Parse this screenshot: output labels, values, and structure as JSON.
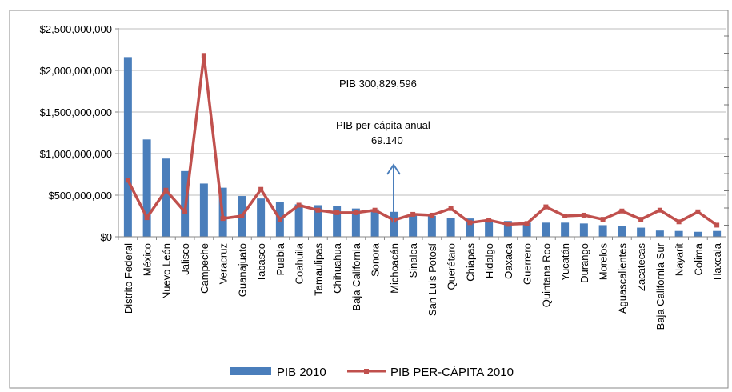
{
  "chart_data": {
    "type": "bar",
    "title": "",
    "categories": [
      "Distrito Federal",
      "México",
      "Nuevo León",
      "Jalisco",
      "Campeche",
      "Veracruz",
      "Guanajuato",
      "Tabasco",
      "Puebla",
      "Coahuila",
      "Tamaulipas",
      "Chihuahua",
      "Baja California",
      "Sonora",
      "Michoacán",
      "Sinaloa",
      "San Luis Potosí",
      "Querétaro",
      "Chiapas",
      "Hidalgo",
      "Oaxaca",
      "Guerrero",
      "Quintana Roo",
      "Yucatán",
      "Durango",
      "Morelos",
      "Aguascalientes",
      "Zacatecas",
      "Baja California Sur",
      "Nayarit",
      "Colima",
      "Tlaxcala"
    ],
    "y_ticks": [
      "$0",
      "$500,000,000",
      "$1,000,000,000",
      "$1,500,000,000",
      "$2,000,000,000",
      "$2,500,000,000"
    ],
    "ylim": [
      0,
      2500000000
    ],
    "grid": true,
    "legend_position": "bottom",
    "series": [
      {
        "name": "PIB 2010",
        "type": "bar",
        "color": "#4a7ebb",
        "values": [
          2160000000,
          1170000000,
          940000000,
          790000000,
          640000000,
          590000000,
          490000000,
          460000000,
          420000000,
          390000000,
          380000000,
          370000000,
          340000000,
          330000000,
          300000000,
          270000000,
          250000000,
          230000000,
          220000000,
          200000000,
          190000000,
          170000000,
          170000000,
          170000000,
          160000000,
          140000000,
          130000000,
          110000000,
          75000000,
          70000000,
          60000000,
          70000000
        ]
      },
      {
        "name": "PIB PER-CÁPITA 2010",
        "type": "line",
        "color": "#c0504d",
        "values": [
          680000000,
          230000000,
          560000000,
          300000000,
          2180000000,
          220000000,
          250000000,
          570000000,
          210000000,
          380000000,
          320000000,
          290000000,
          290000000,
          320000000,
          200000000,
          270000000,
          260000000,
          340000000,
          170000000,
          200000000,
          150000000,
          160000000,
          360000000,
          250000000,
          260000000,
          210000000,
          310000000,
          210000000,
          320000000,
          180000000,
          300000000,
          140000000
        ]
      }
    ],
    "annotations": {
      "pib": "PIB 300,829,596",
      "percapita_line1": "PIB per-cápita anual",
      "percapita_line2": "69.140"
    }
  }
}
